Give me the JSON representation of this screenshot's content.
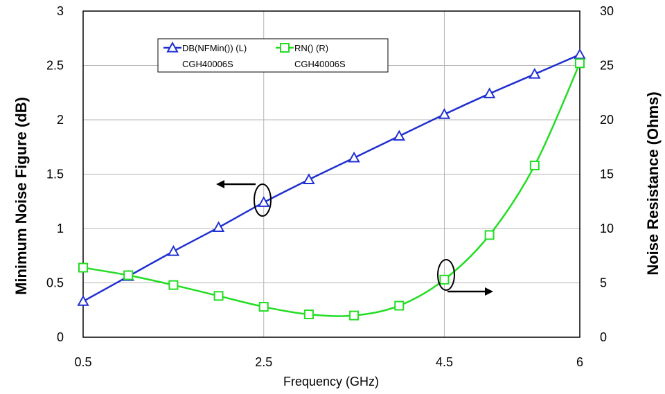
{
  "chart_data": {
    "type": "line",
    "xlabel": "Frequency (GHz)",
    "ylabel_left": "Minimum Noise Figure (dB)",
    "ylabel_right": "Noise Resistance (Ohms)",
    "xlim": [
      0.5,
      6
    ],
    "ylim_left": [
      0,
      3
    ],
    "ylim_right": [
      0,
      30
    ],
    "x_ticks": [
      0.5,
      2.5,
      4.5,
      6
    ],
    "x_tick_labels": [
      "0.5",
      "2.5",
      "4.5",
      "6"
    ],
    "y_left_ticks": [
      0,
      0.5,
      1,
      1.5,
      2,
      2.5,
      3
    ],
    "y_left_tick_labels": [
      "0",
      "0.5",
      "1",
      "1.5",
      "2",
      "2.5",
      "3"
    ],
    "y_right_ticks": [
      0,
      5,
      10,
      15,
      20,
      25,
      30
    ],
    "y_right_tick_labels": [
      "0",
      "5",
      "10",
      "15",
      "20",
      "25",
      "30"
    ],
    "grid": true,
    "legend_position": "top-left",
    "series": [
      {
        "name": "DB(NFMin()) (L)",
        "sublabel": "CGH40006S",
        "axis": "left",
        "color": "#1f2fd0",
        "marker": "triangle",
        "x": [
          0.5,
          1.0,
          1.5,
          2.0,
          2.5,
          3.0,
          3.5,
          4.0,
          4.5,
          5.0,
          5.5,
          6.0
        ],
        "y": [
          0.33,
          0.56,
          0.79,
          1.01,
          1.24,
          1.45,
          1.65,
          1.85,
          2.05,
          2.24,
          2.42,
          2.6
        ]
      },
      {
        "name": "RN() (R)",
        "sublabel": "CGH40006S",
        "axis": "right",
        "color": "#22dd22",
        "marker": "square",
        "x": [
          0.5,
          1.0,
          1.5,
          2.0,
          2.5,
          3.0,
          3.5,
          4.0,
          4.5,
          5.0,
          5.5,
          6.0
        ],
        "y": [
          6.4,
          5.7,
          4.8,
          3.8,
          2.8,
          2.1,
          2.0,
          2.9,
          5.3,
          9.4,
          15.8,
          25.2
        ]
      }
    ]
  }
}
